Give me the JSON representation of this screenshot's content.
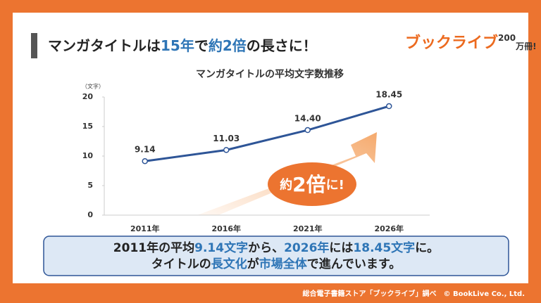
{
  "header": {
    "title_parts": [
      "マンガタイトルは",
      "15年",
      "で",
      "約2倍",
      "の長さに！"
    ]
  },
  "logo": {
    "parts": [
      "ブックライブ",
      "200",
      "万冊!"
    ]
  },
  "chart_data": {
    "type": "line",
    "title": "マンガタイトルの平均文字数推移",
    "y_unit": "（文字）",
    "categories": [
      "2011年",
      "2016年",
      "2021年",
      "2026年"
    ],
    "series": [
      {
        "color": "#2e5597",
        "values": [
          9.14,
          11.03,
          14.4,
          18.45
        ],
        "value_labels": [
          "9.14",
          "11.03",
          "14.40",
          "18.45"
        ]
      }
    ],
    "ylim": [
      0,
      20
    ],
    "yticks": [
      0,
      5,
      10,
      15,
      20
    ],
    "grid": false
  },
  "callout": {
    "parts": [
      "約",
      "2倍",
      "に!"
    ]
  },
  "summary": {
    "lines": [
      [
        "2011年の平均",
        "9.14文字",
        "から、",
        "2026年",
        "には",
        "18.45文字",
        "に。"
      ],
      [
        "タイトルの",
        "長文化",
        "が",
        "市場全体",
        "で進んでいます。"
      ]
    ]
  },
  "footer": {
    "text": "総合電子書籍ストア「ブックライブ」調べ　© BookLive Co., Ltd."
  }
}
